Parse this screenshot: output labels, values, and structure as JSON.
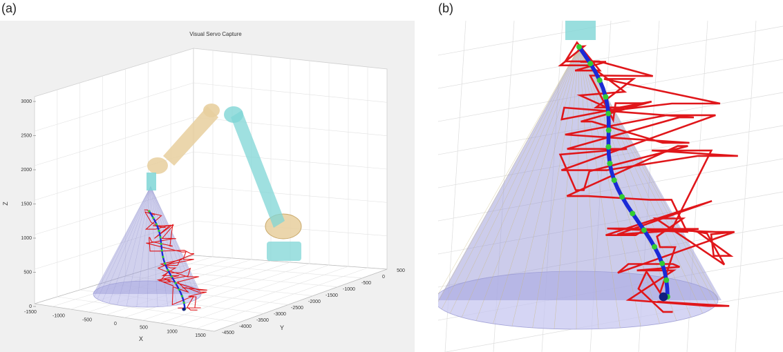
{
  "panels": {
    "a": {
      "label": "(a)",
      "title": "Visual Servo Capture",
      "z_label": "Z",
      "x_label": "X",
      "y_label": "Y",
      "z_ticks": [
        "3000",
        "2500",
        "2000",
        "1500",
        "1000",
        "500",
        "0"
      ],
      "x_ticks": [
        "-1500",
        "-1000",
        "-500",
        "0",
        "500",
        "1000",
        "1500"
      ],
      "y_ticks": [
        "-4500",
        "-4000",
        "-3500",
        "-3000",
        "-2500",
        "-2000",
        "-1500",
        "-1000",
        "-500",
        "0",
        "500"
      ]
    },
    "b": {
      "label": "(b)"
    }
  },
  "colors": {
    "cone_fill": "#9a9ad8",
    "robot_cyan": "#7fd6d6",
    "robot_tan": "#e8cf9e",
    "noisy_path": "#e0161a",
    "smooth_path": "#1a2ad6",
    "path_dots": "#33cc33"
  }
}
